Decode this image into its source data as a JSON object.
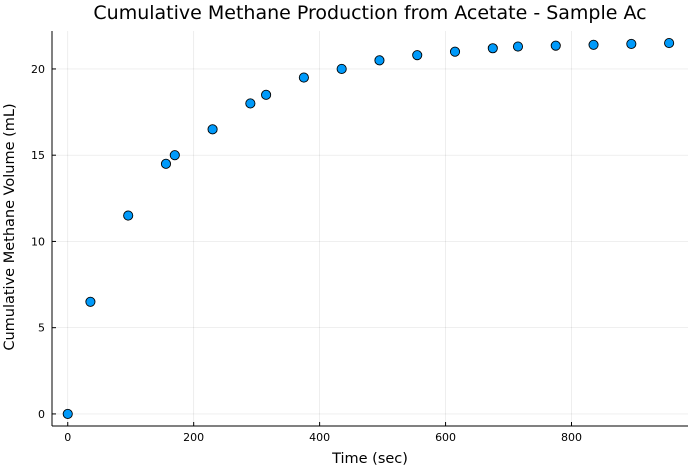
{
  "chart_data": {
    "type": "scatter",
    "title": "Cumulative Methane Production from Acetate - Sample Ac",
    "xlabel": "Time (sec)",
    "ylabel": "Cumulative Methane Volume (mL)",
    "xlim": [
      -25,
      985
    ],
    "ylim": [
      -0.7,
      22.2
    ],
    "xticks": [
      0,
      200,
      400,
      600,
      800
    ],
    "yticks": [
      0,
      5,
      10,
      15,
      20
    ],
    "grid": true,
    "legend": false,
    "marker_color": "#009AFA",
    "marker_edge_color": "#000000",
    "series": [
      {
        "x": [
          0,
          36,
          96,
          156,
          170,
          230,
          290,
          315,
          375,
          435,
          495,
          555,
          615,
          675,
          715,
          775,
          835,
          895,
          955
        ],
        "y": [
          0,
          6.5,
          11.5,
          14.5,
          15.0,
          16.5,
          18.0,
          18.5,
          19.5,
          20.0,
          20.5,
          20.8,
          21.0,
          21.2,
          21.3,
          21.35,
          21.4,
          21.45,
          21.5
        ]
      }
    ]
  }
}
